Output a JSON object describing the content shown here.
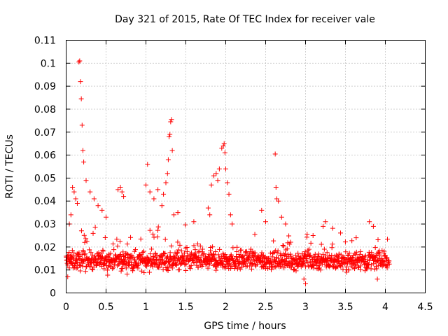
{
  "chart_data": {
    "type": "scatter",
    "title": "Day 321 of 2015, Rate Of TEC Index for receiver vale",
    "xlabel": "GPS time / hours",
    "ylabel": "ROTI / TECUs",
    "xlim": [
      0,
      4.5
    ],
    "ylim": [
      0,
      0.11
    ],
    "x_ticks": [
      "0",
      "0.5",
      "1",
      "1.5",
      "2",
      "2.5",
      "3",
      "3.5",
      "4",
      "4.5"
    ],
    "x_tick_values": [
      0,
      0.5,
      1,
      1.5,
      2,
      2.5,
      3,
      3.5,
      4,
      4.5
    ],
    "y_ticks": [
      "0",
      "0.01",
      "0.02",
      "0.03",
      "0.04",
      "0.05",
      "0.06",
      "0.07",
      "0.08",
      "0.09",
      "0.1",
      "0.11"
    ],
    "y_tick_values": [
      0,
      0.01,
      0.02,
      0.03,
      0.04,
      0.05,
      0.06,
      0.07,
      0.08,
      0.09,
      0.1,
      0.11
    ],
    "grid": true,
    "marker": "+",
    "color": "#ff0000",
    "series": [
      {
        "name": "ROTI",
        "x_range": [
          0,
          4.05
        ],
        "baseline": 0.014,
        "noise": 0.004,
        "num_points": 1200,
        "outliers": [
          {
            "x": 0.16,
            "y": 0.1005
          },
          {
            "x": 0.17,
            "y": 0.101
          },
          {
            "x": 0.18,
            "y": 0.092
          },
          {
            "x": 0.19,
            "y": 0.0845
          },
          {
            "x": 0.2,
            "y": 0.073
          },
          {
            "x": 0.21,
            "y": 0.062
          },
          {
            "x": 0.22,
            "y": 0.057
          },
          {
            "x": 0.25,
            "y": 0.049
          },
          {
            "x": 0.08,
            "y": 0.046
          },
          {
            "x": 0.1,
            "y": 0.044
          },
          {
            "x": 0.12,
            "y": 0.041
          },
          {
            "x": 0.14,
            "y": 0.039
          },
          {
            "x": 0.3,
            "y": 0.044
          },
          {
            "x": 0.35,
            "y": 0.041
          },
          {
            "x": 0.4,
            "y": 0.038
          },
          {
            "x": 0.45,
            "y": 0.036
          },
          {
            "x": 0.5,
            "y": 0.033
          },
          {
            "x": 0.04,
            "y": 0.03
          },
          {
            "x": 0.06,
            "y": 0.034
          },
          {
            "x": 0.65,
            "y": 0.045
          },
          {
            "x": 0.68,
            "y": 0.046
          },
          {
            "x": 0.7,
            "y": 0.044
          },
          {
            "x": 0.72,
            "y": 0.042
          },
          {
            "x": 1.0,
            "y": 0.047
          },
          {
            "x": 1.02,
            "y": 0.056
          },
          {
            "x": 1.05,
            "y": 0.044
          },
          {
            "x": 1.1,
            "y": 0.041
          },
          {
            "x": 1.15,
            "y": 0.045
          },
          {
            "x": 1.2,
            "y": 0.038
          },
          {
            "x": 1.22,
            "y": 0.043
          },
          {
            "x": 1.25,
            "y": 0.048
          },
          {
            "x": 1.27,
            "y": 0.052
          },
          {
            "x": 1.28,
            "y": 0.058
          },
          {
            "x": 1.29,
            "y": 0.068
          },
          {
            "x": 1.3,
            "y": 0.069
          },
          {
            "x": 1.31,
            "y": 0.0745
          },
          {
            "x": 1.32,
            "y": 0.0755
          },
          {
            "x": 1.33,
            "y": 0.062
          },
          {
            "x": 1.35,
            "y": 0.034
          },
          {
            "x": 1.4,
            "y": 0.035
          },
          {
            "x": 1.6,
            "y": 0.031
          },
          {
            "x": 1.78,
            "y": 0.037
          },
          {
            "x": 1.8,
            "y": 0.034
          },
          {
            "x": 1.82,
            "y": 0.047
          },
          {
            "x": 1.85,
            "y": 0.051
          },
          {
            "x": 1.88,
            "y": 0.052
          },
          {
            "x": 1.9,
            "y": 0.049
          },
          {
            "x": 1.92,
            "y": 0.054
          },
          {
            "x": 1.95,
            "y": 0.063
          },
          {
            "x": 1.97,
            "y": 0.064
          },
          {
            "x": 1.98,
            "y": 0.065
          },
          {
            "x": 1.99,
            "y": 0.061
          },
          {
            "x": 2.0,
            "y": 0.054
          },
          {
            "x": 2.02,
            "y": 0.048
          },
          {
            "x": 2.04,
            "y": 0.043
          },
          {
            "x": 2.06,
            "y": 0.034
          },
          {
            "x": 2.08,
            "y": 0.03
          },
          {
            "x": 2.45,
            "y": 0.036
          },
          {
            "x": 2.5,
            "y": 0.031
          },
          {
            "x": 2.62,
            "y": 0.0605
          },
          {
            "x": 2.63,
            "y": 0.046
          },
          {
            "x": 2.64,
            "y": 0.041
          },
          {
            "x": 2.66,
            "y": 0.04
          },
          {
            "x": 2.7,
            "y": 0.033
          },
          {
            "x": 2.75,
            "y": 0.03
          },
          {
            "x": 3.22,
            "y": 0.029
          },
          {
            "x": 3.25,
            "y": 0.031
          },
          {
            "x": 3.8,
            "y": 0.031
          },
          {
            "x": 3.85,
            "y": 0.029
          },
          {
            "x": 3.0,
            "y": 0.004
          },
          {
            "x": 2.98,
            "y": 0.006
          },
          {
            "x": 3.9,
            "y": 0.006
          },
          {
            "x": 0.02,
            "y": 0.007
          }
        ]
      }
    ]
  }
}
